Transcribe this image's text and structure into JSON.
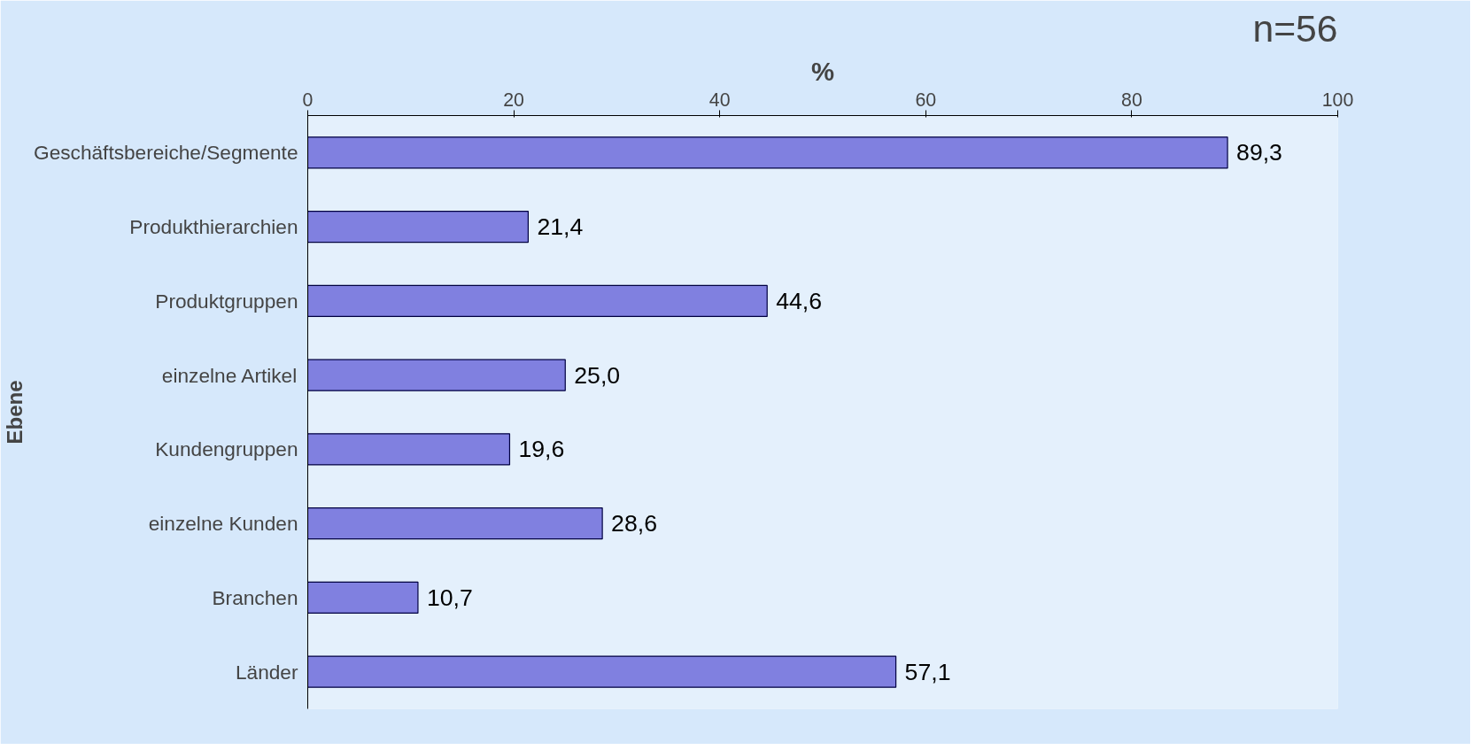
{
  "chart_data": {
    "type": "bar",
    "orientation": "horizontal",
    "xlabel": "%",
    "ylabel": "Ebene",
    "categories": [
      "Geschäftsbereiche/Segmente",
      "Produkthierarchien",
      "Produktgruppen",
      "einzelne Artikel",
      "Kundengruppen",
      "einzelne Kunden",
      "Branchen",
      "Länder"
    ],
    "values": [
      89.3,
      21.4,
      44.6,
      25.0,
      19.6,
      28.6,
      10.7,
      57.1
    ],
    "value_labels": [
      "89,3",
      "21,4",
      "44,6",
      "25,0",
      "19,6",
      "28,6",
      "10,7",
      "57,1"
    ],
    "color": "#8080e0",
    "xlim": [
      0,
      100
    ],
    "xticks": [
      0,
      20,
      40,
      60,
      80,
      100
    ],
    "grid": false,
    "annotations": [
      "n=56"
    ]
  }
}
